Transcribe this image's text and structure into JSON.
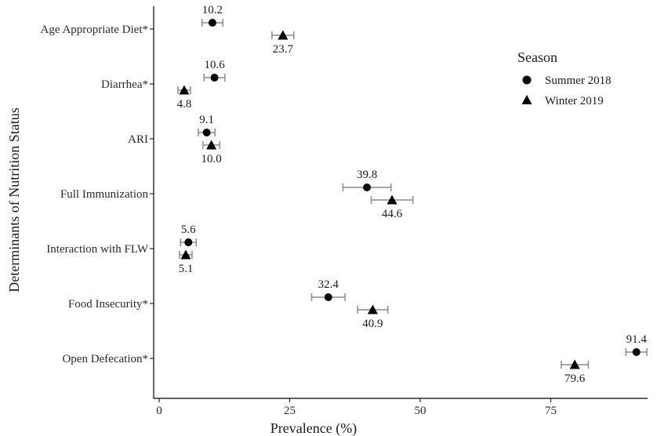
{
  "chart_data": {
    "type": "scatter",
    "title": "",
    "xlabel": "Prevalence (%)",
    "ylabel": "Determinants of Nutrition Status",
    "xlim": [
      0,
      95
    ],
    "x_ticks": [
      0,
      25,
      50,
      75
    ],
    "grid": false,
    "legend": {
      "title": "Season",
      "placement": "right"
    },
    "categories": [
      "Age Appropriate Diet*",
      "Diarrhea*",
      "ARI",
      "Full Immunization",
      "Interaction with FLW",
      "Food Insecurity*",
      "Open Defecation*"
    ],
    "series": [
      {
        "name": "Summer 2018",
        "marker": "circle",
        "values": [
          10.2,
          10.6,
          9.1,
          39.8,
          5.6,
          32.4,
          91.4
        ],
        "labels": [
          "10.2",
          "10.6",
          "9.1",
          "39.8",
          "5.6",
          "32.4",
          "91.4"
        ],
        "ci_low": [
          8.2,
          8.6,
          7.5,
          35.2,
          4.1,
          29.2,
          89.4
        ],
        "ci_high": [
          12.2,
          12.6,
          10.7,
          44.4,
          7.1,
          35.6,
          93.4
        ]
      },
      {
        "name": "Winter 2019",
        "marker": "triangle",
        "values": [
          23.7,
          4.8,
          10.0,
          44.6,
          5.1,
          40.9,
          79.6
        ],
        "labels": [
          "23.7",
          "4.8",
          "10.0",
          "44.6",
          "5.1",
          "40.9",
          "79.6"
        ],
        "ci_low": [
          21.6,
          3.6,
          8.4,
          40.6,
          3.9,
          38.0,
          77.0
        ],
        "ci_high": [
          25.8,
          6.0,
          11.6,
          48.6,
          6.3,
          43.8,
          82.2
        ]
      }
    ]
  }
}
